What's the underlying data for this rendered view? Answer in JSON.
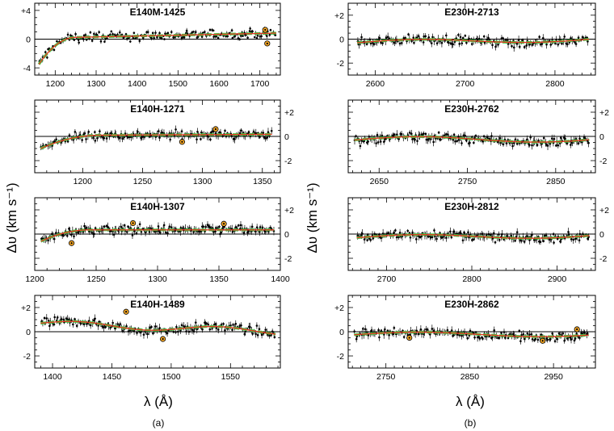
{
  "figure": {
    "ylabel_left": "Δυ (km s⁻¹)",
    "ylabel_right": "Δυ (km s⁻¹)",
    "xlabel_left": "λ (Å)",
    "xlabel_right": "λ (Å)",
    "caption_left": "(a)",
    "caption_right": "(b)"
  },
  "colors": {
    "points": "#000000",
    "fit_green": "#3ecf4a",
    "fit_red": "#e23a22",
    "outlier_fill": "#f5a623"
  },
  "chart_data": [
    {
      "type": "scatter",
      "title": "E140M-1425",
      "column": "left",
      "row": 0,
      "xlim": [
        1150,
        1750
      ],
      "ylim": [
        -5,
        5
      ],
      "xticks": [
        1200,
        1300,
        1400,
        1500,
        1600,
        1700
      ],
      "yticks": [
        -4,
        0,
        4
      ],
      "ytick_labels": [
        "-4",
        "0",
        "+4"
      ],
      "ytick_side": "left",
      "fit_model": {
        "kind": "rise",
        "x_start": 1160,
        "y_start": -3.5,
        "x_knee": 1250,
        "y_plateau": 0.25,
        "slope_after": 0.0012,
        "x_end": 1740
      },
      "scatter_amplitude": 0.55,
      "n_points": 190,
      "outliers": [
        {
          "x": 1713,
          "y": 1.3
        },
        {
          "x": 1718,
          "y": -0.6
        }
      ]
    },
    {
      "type": "scatter",
      "title": "E140H-1271",
      "column": "left",
      "row": 1,
      "xlim": [
        1160,
        1365
      ],
      "ylim": [
        -3,
        3
      ],
      "xticks": [
        1200,
        1250,
        1300,
        1350
      ],
      "yticks": [
        -2,
        0,
        2
      ],
      "ytick_labels": [
        "-2",
        "0",
        "+2"
      ],
      "ytick_side": "right",
      "fit_model": {
        "kind": "rise",
        "x_start": 1165,
        "y_start": -1.0,
        "x_knee": 1215,
        "y_plateau": 0.1,
        "slope_after": 0.0005,
        "x_end": 1358
      },
      "scatter_amplitude": 0.3,
      "n_points": 170,
      "outliers": [
        {
          "x": 1283,
          "y": -0.45
        },
        {
          "x": 1311,
          "y": 0.6
        }
      ]
    },
    {
      "type": "scatter",
      "title": "E140H-1307",
      "column": "left",
      "row": 2,
      "xlim": [
        1200,
        1400
      ],
      "ylim": [
        -3,
        3
      ],
      "xticks": [
        1200,
        1250,
        1300,
        1350,
        1400
      ],
      "yticks": [
        -2,
        0,
        2
      ],
      "ytick_labels": [
        "-2",
        "0",
        "+2"
      ],
      "ytick_side": "right",
      "fit_model": {
        "kind": "rise",
        "x_start": 1205,
        "y_start": -0.6,
        "x_knee": 1245,
        "y_plateau": 0.35,
        "slope_after": 0.0,
        "x_end": 1395
      },
      "scatter_amplitude": 0.3,
      "n_points": 180,
      "outliers": [
        {
          "x": 1230,
          "y": -0.75
        },
        {
          "x": 1280,
          "y": 0.9
        },
        {
          "x": 1354,
          "y": 0.85
        }
      ]
    },
    {
      "type": "scatter",
      "title": "E140H-1489",
      "column": "left",
      "row": 3,
      "xlim": [
        1385,
        1592
      ],
      "ylim": [
        -3,
        3
      ],
      "xticks": [
        1400,
        1450,
        1500,
        1550
      ],
      "yticks": [
        -2,
        0,
        2
      ],
      "ytick_labels": [
        "-2",
        "0",
        "+2"
      ],
      "ytick_side": "left",
      "fit_model": {
        "kind": "wave",
        "x_start": 1390,
        "y_start": 0.7,
        "x_end": 1588,
        "y_end": 0.0,
        "wave_amp": 0.25,
        "wave_period": 120
      },
      "scatter_amplitude": 0.3,
      "n_points": 170,
      "outliers": [
        {
          "x": 1462,
          "y": 1.65
        },
        {
          "x": 1493,
          "y": -0.6
        }
      ]
    },
    {
      "type": "scatter",
      "title": "E230H-2713",
      "column": "right",
      "row": 0,
      "xlim": [
        2570,
        2845
      ],
      "ylim": [
        -3,
        3
      ],
      "xticks": [
        2600,
        2700,
        2800
      ],
      "yticks": [
        -2,
        0,
        2
      ],
      "ytick_labels": [
        "-2",
        "0",
        "+2"
      ],
      "ytick_side": "left",
      "fit_model": {
        "kind": "wave",
        "x_start": 2580,
        "y_start": -0.3,
        "x_end": 2838,
        "y_end": 0.0,
        "wave_amp": 0.2,
        "wave_period": 260
      },
      "scatter_amplitude": 0.3,
      "n_points": 160,
      "outliers": []
    },
    {
      "type": "scatter",
      "title": "E230H-2762",
      "column": "right",
      "row": 1,
      "xlim": [
        2615,
        2895
      ],
      "ylim": [
        -3,
        3
      ],
      "xticks": [
        2650,
        2750,
        2850
      ],
      "yticks": [
        -2,
        0,
        2
      ],
      "ytick_labels": [
        "-2",
        "0",
        "+2"
      ],
      "ytick_side": "right",
      "fit_model": {
        "kind": "wave",
        "x_start": 2622,
        "y_start": -0.3,
        "x_end": 2888,
        "y_end": -0.2,
        "wave_amp": 0.25,
        "wave_period": 280
      },
      "scatter_amplitude": 0.35,
      "n_points": 180,
      "outliers": []
    },
    {
      "type": "scatter",
      "title": "E230H-2812",
      "column": "right",
      "row": 2,
      "xlim": [
        2655,
        2945
      ],
      "ylim": [
        -3,
        3
      ],
      "xticks": [
        2700,
        2800,
        2900
      ],
      "yticks": [
        -2,
        0,
        2
      ],
      "ytick_labels": [
        "-2",
        "0",
        "+2"
      ],
      "ytick_side": "right",
      "fit_model": {
        "kind": "wave",
        "x_start": 2665,
        "y_start": -0.3,
        "x_end": 2938,
        "y_end": -0.1,
        "wave_amp": 0.2,
        "wave_period": 280
      },
      "scatter_amplitude": 0.3,
      "n_points": 170,
      "outliers": []
    },
    {
      "type": "scatter",
      "title": "E230H-2862",
      "column": "right",
      "row": 3,
      "xlim": [
        2705,
        3000
      ],
      "ylim": [
        -3,
        3
      ],
      "xticks": [
        2750,
        2850,
        2950
      ],
      "yticks": [
        -2,
        0,
        2
      ],
      "ytick_labels": [
        "-2",
        "0",
        "+2"
      ],
      "ytick_side": "left",
      "fit_model": {
        "kind": "wave",
        "x_start": 2712,
        "y_start": -0.25,
        "x_end": 2992,
        "y_end": -0.2,
        "wave_amp": 0.2,
        "wave_period": 300
      },
      "scatter_amplitude": 0.3,
      "n_points": 170,
      "outliers": [
        {
          "x": 2778,
          "y": -0.5
        },
        {
          "x": 2937,
          "y": -0.75
        },
        {
          "x": 2978,
          "y": 0.2
        }
      ]
    }
  ]
}
